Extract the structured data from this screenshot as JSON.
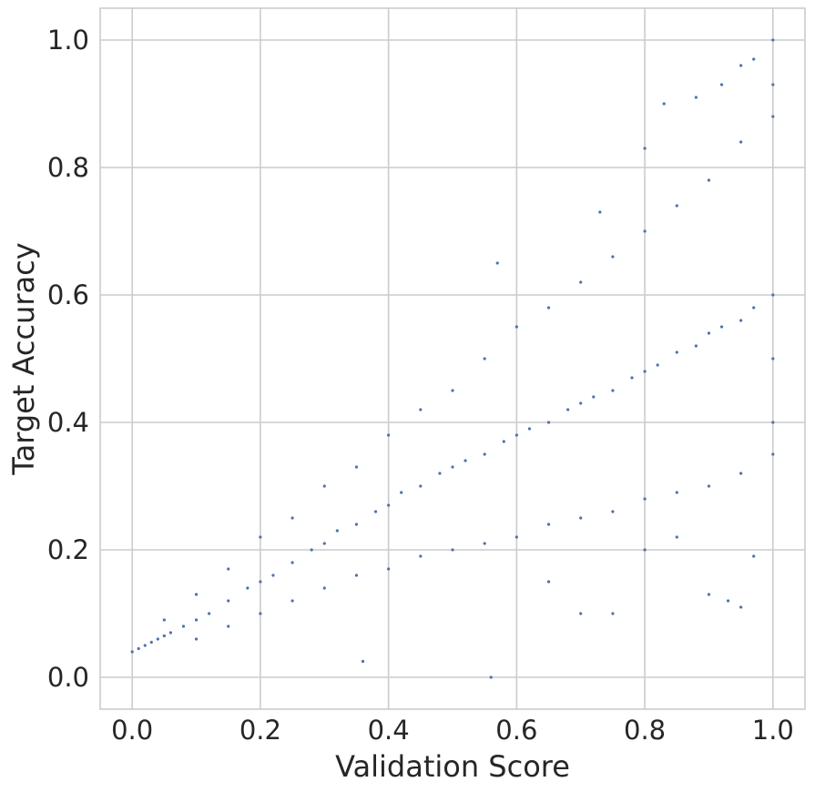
{
  "chart_data": {
    "type": "scatter",
    "title": "",
    "xlabel": "Validation Score",
    "ylabel": "Target Accuracy",
    "xlim": [
      -0.05,
      1.05
    ],
    "ylim": [
      -0.05,
      1.05
    ],
    "x_ticks": [
      0.0,
      0.2,
      0.4,
      0.6,
      0.8,
      1.0
    ],
    "x_tick_labels": [
      "0.0",
      "0.2",
      "0.4",
      "0.6",
      "0.8",
      "1.0"
    ],
    "y_ticks": [
      0.0,
      0.2,
      0.4,
      0.6,
      0.8,
      1.0
    ],
    "y_tick_labels": [
      "0.0",
      "0.2",
      "0.4",
      "0.6",
      "0.8",
      "1.0"
    ],
    "grid": true,
    "legend": "none",
    "marker_color": "#4c72b0",
    "series": [
      {
        "points": [
          [
            0.0,
            0.04
          ],
          [
            0.01,
            0.045
          ],
          [
            0.02,
            0.05
          ],
          [
            0.03,
            0.055
          ],
          [
            0.04,
            0.06
          ],
          [
            0.05,
            0.065
          ],
          [
            0.06,
            0.07
          ],
          [
            0.08,
            0.08
          ],
          [
            0.1,
            0.09
          ],
          [
            0.12,
            0.1
          ],
          [
            0.15,
            0.12
          ],
          [
            0.18,
            0.14
          ],
          [
            0.2,
            0.15
          ],
          [
            0.22,
            0.16
          ],
          [
            0.25,
            0.18
          ],
          [
            0.28,
            0.2
          ],
          [
            0.3,
            0.21
          ],
          [
            0.32,
            0.23
          ],
          [
            0.35,
            0.24
          ],
          [
            0.38,
            0.26
          ],
          [
            0.4,
            0.27
          ],
          [
            0.42,
            0.29
          ],
          [
            0.45,
            0.3
          ],
          [
            0.48,
            0.32
          ],
          [
            0.5,
            0.33
          ],
          [
            0.52,
            0.34
          ],
          [
            0.55,
            0.35
          ],
          [
            0.58,
            0.37
          ],
          [
            0.6,
            0.38
          ],
          [
            0.62,
            0.39
          ],
          [
            0.65,
            0.4
          ],
          [
            0.68,
            0.42
          ],
          [
            0.7,
            0.43
          ],
          [
            0.72,
            0.44
          ],
          [
            0.75,
            0.45
          ],
          [
            0.78,
            0.47
          ],
          [
            0.8,
            0.48
          ],
          [
            0.82,
            0.49
          ],
          [
            0.85,
            0.51
          ],
          [
            0.88,
            0.52
          ],
          [
            0.9,
            0.54
          ],
          [
            0.92,
            0.55
          ],
          [
            0.95,
            0.56
          ],
          [
            0.97,
            0.58
          ],
          [
            1.0,
            0.6
          ],
          [
            0.05,
            0.09
          ],
          [
            0.1,
            0.13
          ],
          [
            0.15,
            0.17
          ],
          [
            0.2,
            0.22
          ],
          [
            0.25,
            0.25
          ],
          [
            0.3,
            0.3
          ],
          [
            0.35,
            0.33
          ],
          [
            0.4,
            0.38
          ],
          [
            0.45,
            0.42
          ],
          [
            0.5,
            0.45
          ],
          [
            0.55,
            0.5
          ],
          [
            0.6,
            0.55
          ],
          [
            0.65,
            0.58
          ],
          [
            0.7,
            0.62
          ],
          [
            0.75,
            0.66
          ],
          [
            0.8,
            0.7
          ],
          [
            0.85,
            0.74
          ],
          [
            0.9,
            0.78
          ],
          [
            0.95,
            0.84
          ],
          [
            1.0,
            0.88
          ],
          [
            0.1,
            0.06
          ],
          [
            0.15,
            0.08
          ],
          [
            0.2,
            0.1
          ],
          [
            0.25,
            0.12
          ],
          [
            0.3,
            0.14
          ],
          [
            0.35,
            0.16
          ],
          [
            0.4,
            0.17
          ],
          [
            0.45,
            0.19
          ],
          [
            0.5,
            0.2
          ],
          [
            0.55,
            0.21
          ],
          [
            0.6,
            0.22
          ],
          [
            0.65,
            0.24
          ],
          [
            0.7,
            0.25
          ],
          [
            0.75,
            0.26
          ],
          [
            0.8,
            0.28
          ],
          [
            0.85,
            0.29
          ],
          [
            0.9,
            0.3
          ],
          [
            0.95,
            0.32
          ],
          [
            1.0,
            0.35
          ],
          [
            0.36,
            0.025
          ],
          [
            0.56,
            0.0
          ],
          [
            0.57,
            0.65
          ],
          [
            0.73,
            0.73
          ],
          [
            0.8,
            0.83
          ],
          [
            0.83,
            0.9
          ],
          [
            0.88,
            0.91
          ],
          [
            0.92,
            0.93
          ],
          [
            0.95,
            0.96
          ],
          [
            0.97,
            0.97
          ],
          [
            1.0,
            1.0
          ],
          [
            1.0,
            0.93
          ],
          [
            0.65,
            0.15
          ],
          [
            0.7,
            0.1
          ],
          [
            0.75,
            0.1
          ],
          [
            0.8,
            0.2
          ],
          [
            0.85,
            0.22
          ],
          [
            0.9,
            0.13
          ],
          [
            0.93,
            0.12
          ],
          [
            0.95,
            0.11
          ],
          [
            0.97,
            0.19
          ],
          [
            1.0,
            0.4
          ],
          [
            1.0,
            0.5
          ]
        ]
      }
    ]
  }
}
